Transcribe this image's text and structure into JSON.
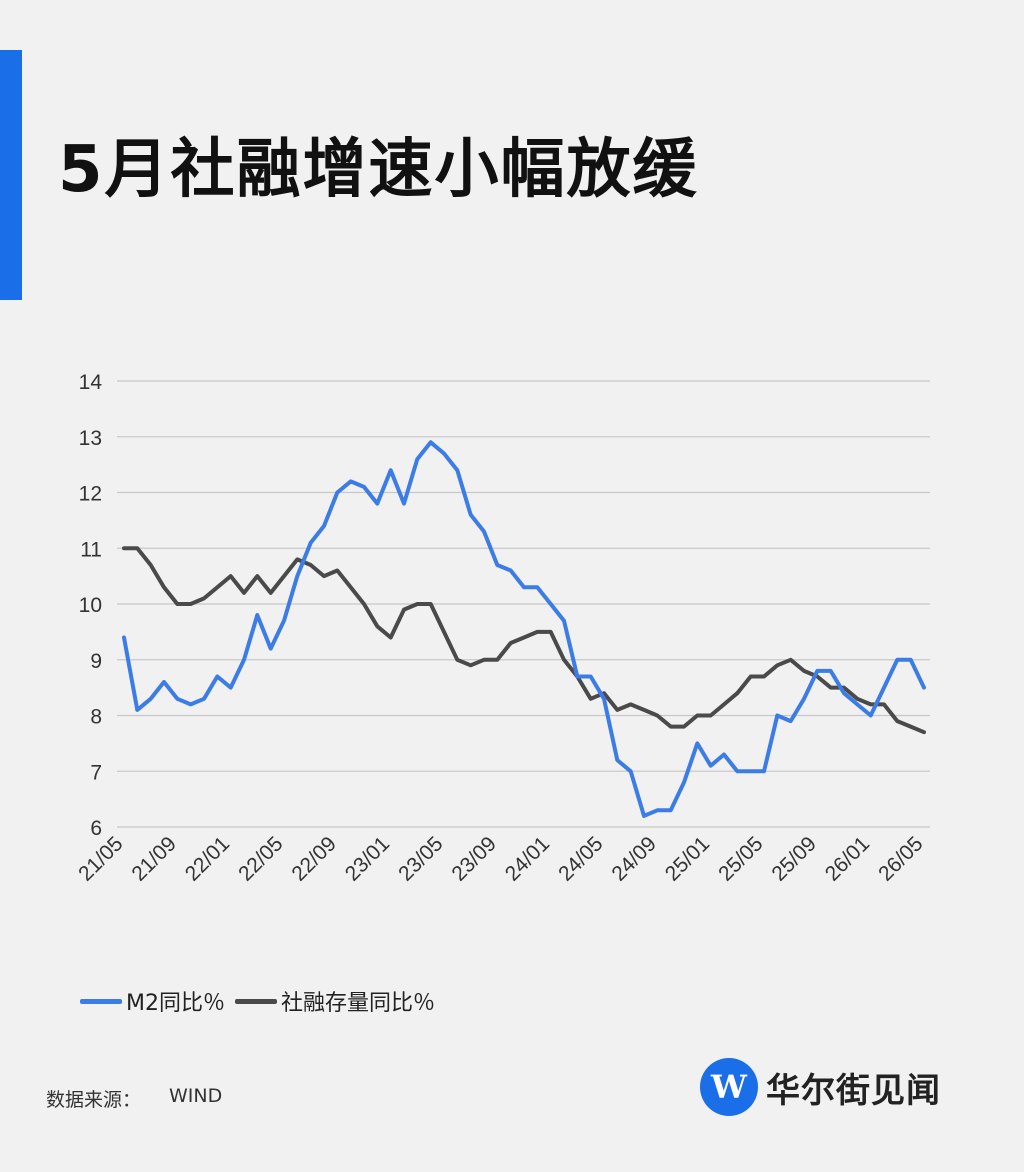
{
  "header": {
    "title": "5月社融增速小幅放缓"
  },
  "source": {
    "label": "数据来源：",
    "value": "WIND"
  },
  "brand": {
    "logo_letter": "W",
    "name": "华尔街见闻"
  },
  "colors": {
    "accent": "#1a6fe8",
    "m2": "#3b7ce6",
    "tsf": "#4a4a4a",
    "grid": "#c8c8c8",
    "background": "#f1f1f1"
  },
  "chart_data": {
    "type": "line",
    "title": "",
    "xlabel": "",
    "ylabel": "",
    "ylim": [
      6,
      14
    ],
    "yticks": [
      6,
      7,
      8,
      9,
      10,
      11,
      12,
      13,
      14
    ],
    "grid": true,
    "legend_position": "bottom-left",
    "xtick_labels": [
      "21/05",
      "21/09",
      "22/01",
      "22/05",
      "22/09",
      "23/01",
      "23/05",
      "23/09",
      "24/01",
      "24/05",
      "24/09",
      "25/01",
      "25/05",
      "25/09",
      "26/01",
      "26/05"
    ],
    "x": [
      "21/05",
      "21/06",
      "21/07",
      "21/08",
      "21/09",
      "21/10",
      "21/11",
      "21/12",
      "22/01",
      "22/02",
      "22/03",
      "22/04",
      "22/05",
      "22/06",
      "22/07",
      "22/08",
      "22/09",
      "22/10",
      "22/11",
      "22/12",
      "23/01",
      "23/02",
      "23/03",
      "23/04",
      "23/05",
      "23/06",
      "23/07",
      "23/08",
      "23/09",
      "23/10",
      "23/11",
      "23/12",
      "24/01",
      "24/02",
      "24/03",
      "24/04",
      "24/05",
      "24/06",
      "24/07",
      "24/08",
      "24/09",
      "24/10",
      "24/11",
      "24/12",
      "25/01",
      "25/02",
      "25/03",
      "25/04",
      "25/05",
      "25/06",
      "25/07",
      "25/08",
      "25/09",
      "25/10",
      "25/11",
      "25/12",
      "26/01",
      "26/02",
      "26/03",
      "26/04",
      "26/05"
    ],
    "series": [
      {
        "name": "M2同比％",
        "color": "#3b7ce6",
        "values": [
          9.4,
          8.1,
          8.3,
          8.6,
          8.3,
          8.2,
          8.3,
          8.7,
          8.5,
          9.0,
          9.8,
          9.2,
          9.7,
          10.5,
          11.1,
          11.4,
          12.0,
          12.2,
          12.1,
          11.8,
          12.4,
          11.8,
          12.6,
          12.9,
          12.7,
          12.4,
          11.6,
          11.3,
          10.7,
          10.6,
          10.3,
          10.3,
          10.0,
          9.7,
          8.7,
          8.7,
          8.3,
          7.2,
          7.0,
          6.2,
          6.3,
          6.3,
          6.8,
          7.5,
          7.1,
          7.3,
          7.0,
          7.0,
          7.0,
          8.0,
          7.9,
          8.3,
          8.8,
          8.8,
          8.4,
          8.2,
          8.0,
          8.5,
          9.0,
          9.0,
          8.5
        ]
      },
      {
        "name": "社融存量同比％",
        "color": "#4a4a4a",
        "values": [
          11.0,
          11.0,
          10.7,
          10.3,
          10.0,
          10.0,
          10.1,
          10.3,
          10.5,
          10.2,
          10.5,
          10.2,
          10.5,
          10.8,
          10.7,
          10.5,
          10.6,
          10.3,
          10.0,
          9.6,
          9.4,
          9.9,
          10.0,
          10.0,
          9.5,
          9.0,
          8.9,
          9.0,
          9.0,
          9.3,
          9.4,
          9.5,
          9.5,
          9.0,
          8.7,
          8.3,
          8.4,
          8.1,
          8.2,
          8.1,
          8.0,
          7.8,
          7.8,
          8.0,
          8.0,
          8.2,
          8.4,
          8.7,
          8.7,
          8.9,
          9.0,
          8.8,
          8.7,
          8.5,
          8.5,
          8.3,
          8.2,
          8.2,
          7.9,
          7.8,
          7.7
        ]
      }
    ]
  }
}
